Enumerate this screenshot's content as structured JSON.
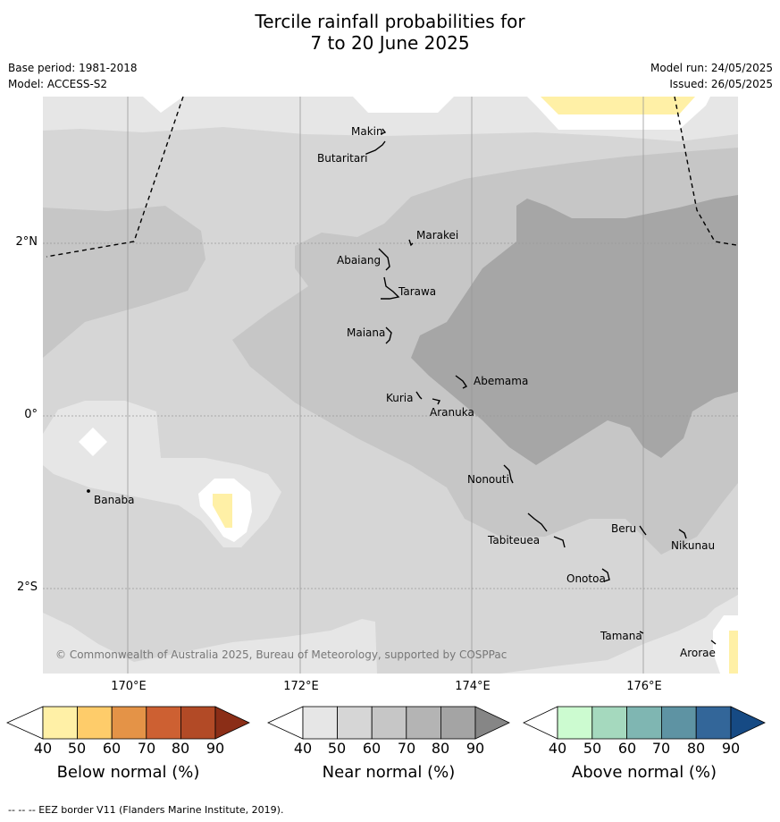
{
  "title_line1": "Tercile rainfall probabilities for",
  "title_line2": "7 to 20 June 2025",
  "meta_left": {
    "base_period": "Base period: 1981-2018",
    "model": "Model: ACCESS-S2"
  },
  "meta_right": {
    "model_run": "Model run: 24/05/2025",
    "issued": "Issued: 26/05/2025"
  },
  "lon_labels": [
    "170°E",
    "172°E",
    "174°E",
    "176°E"
  ],
  "lat_labels": [
    "2°N",
    "0°",
    "2°S"
  ],
  "places": {
    "makin": "Makin",
    "butaritari": "Butaritari",
    "marakei": "Marakei",
    "abaiang": "Abaiang",
    "tarawa": "Tarawa",
    "maiana": "Maiana",
    "abemama": "Abemama",
    "kuria": "Kuria",
    "aranuka": "Aranuka",
    "nonouti": "Nonouti",
    "banaba": "Banaba",
    "tabiteuea": "Tabiteuea",
    "beru": "Beru",
    "nikunau": "Nikunau",
    "onotoa": "Onotoa",
    "tamana": "Tamana",
    "arorae": "Arorae"
  },
  "copyright": "© Commonwealth of Australia 2025, Bureau of Meteorology, supported by COSPPac",
  "colorbars": {
    "below": {
      "label": "Below normal (%)",
      "ticks": [
        "40",
        "50",
        "60",
        "70",
        "80",
        "90"
      ],
      "colors": [
        "#fff0a6",
        "#fecc6a",
        "#e49347",
        "#cd6032",
        "#b24a26",
        "#8b2e17"
      ]
    },
    "near": {
      "label": "Near normal (%)",
      "ticks": [
        "40",
        "50",
        "60",
        "70",
        "80",
        "90"
      ],
      "colors": [
        "#e6e6e6",
        "#d6d6d6",
        "#c6c6c6",
        "#b4b4b4",
        "#a4a4a4",
        "#868686"
      ]
    },
    "above": {
      "label": "Above normal (%)",
      "ticks": [
        "40",
        "50",
        "60",
        "70",
        "80",
        "90"
      ],
      "colors": [
        "#ccfbd0",
        "#a5d9be",
        "#7fb6b2",
        "#5e93a3",
        "#336699",
        "#164a84"
      ]
    }
  },
  "footer": "--  --  -- EEZ border V11 (Flanders Marine Institute, 2019)."
}
